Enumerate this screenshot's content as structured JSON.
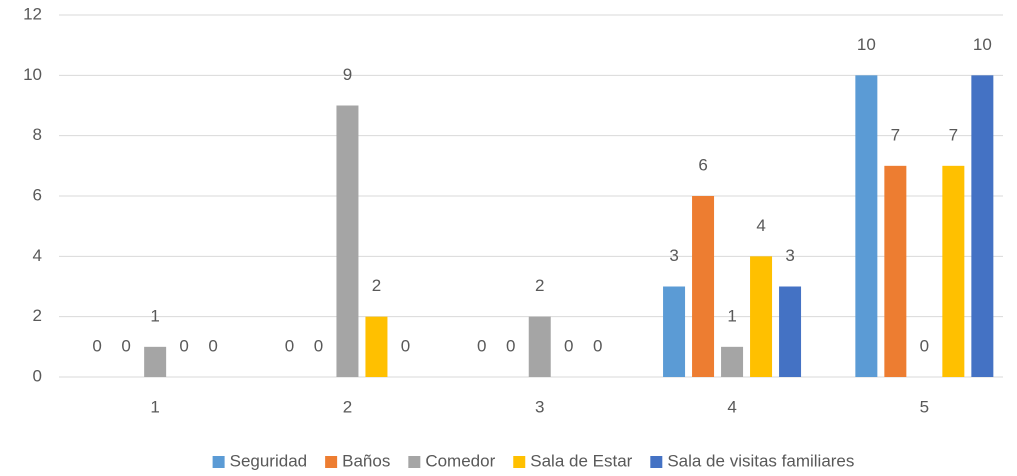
{
  "chart_data": {
    "type": "bar",
    "categories": [
      "1",
      "2",
      "3",
      "4",
      "5"
    ],
    "series": [
      {
        "name": "Seguridad",
        "color": "#5b9bd5",
        "values": [
          0,
          0,
          0,
          3,
          10
        ]
      },
      {
        "name": "Baños",
        "color": "#ed7d31",
        "values": [
          0,
          0,
          0,
          6,
          7
        ]
      },
      {
        "name": "Comedor",
        "color": "#a5a5a5",
        "values": [
          1,
          9,
          2,
          1,
          0
        ]
      },
      {
        "name": "Sala de Estar",
        "color": "#ffc000",
        "values": [
          0,
          2,
          0,
          4,
          7
        ]
      },
      {
        "name": "Sala de visitas familiares",
        "color": "#4472c4",
        "values": [
          0,
          0,
          0,
          3,
          10
        ]
      }
    ],
    "ylim": [
      0,
      12
    ],
    "yticks": [
      0,
      2,
      4,
      6,
      8,
      10,
      12
    ],
    "grid": true,
    "legend": "bottom",
    "data_labels": true
  }
}
